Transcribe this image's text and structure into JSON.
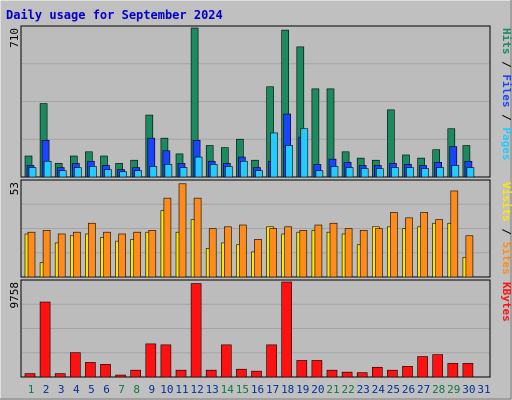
{
  "title": "Daily usage for September 2024",
  "colors": {
    "hits": "#1b8a5e",
    "files": "#1a44ff",
    "pages": "#22ccff",
    "visits": "#ffe600",
    "sites": "#ff8c1a",
    "kbytes": "#ff1111",
    "weekend_label": "#117744",
    "weekday_label": "#003399"
  },
  "chart_data": [
    {
      "type": "bar",
      "name": "hits-files-pages",
      "categories": [
        "1",
        "2",
        "3",
        "4",
        "5",
        "6",
        "7",
        "8",
        "9",
        "10",
        "11",
        "12",
        "13",
        "14",
        "15",
        "16",
        "17",
        "18",
        "19",
        "20",
        "21",
        "22",
        "23",
        "24",
        "25",
        "26",
        "27",
        "28",
        "29",
        "30",
        "31"
      ],
      "weekend_days": [
        "1",
        "7",
        "8",
        "14",
        "15",
        "21",
        "22",
        "28",
        "29"
      ],
      "max_label": "710",
      "ylim": [
        0,
        710
      ],
      "right_label": {
        "pages": "Pages",
        "files": "Files",
        "hits": "Hits",
        "sep": " / "
      },
      "series": [
        {
          "name": "Hits",
          "values": [
            100,
            350,
            65,
            100,
            120,
            100,
            65,
            80,
            295,
            185,
            110,
            710,
            150,
            140,
            180,
            80,
            430,
            700,
            620,
            420,
            420,
            120,
            90,
            80,
            320,
            105,
            90,
            130,
            230,
            150,
            0
          ]
        },
        {
          "name": "Files",
          "values": [
            55,
            175,
            45,
            65,
            75,
            55,
            35,
            45,
            185,
            125,
            65,
            175,
            75,
            65,
            95,
            45,
            75,
            300,
            190,
            60,
            85,
            70,
            55,
            55,
            65,
            60,
            55,
            70,
            145,
            75,
            0
          ]
        },
        {
          "name": "Pages",
          "values": [
            45,
            75,
            30,
            45,
            50,
            35,
            25,
            30,
            50,
            60,
            45,
            95,
            60,
            50,
            75,
            30,
            210,
            150,
            230,
            30,
            50,
            45,
            40,
            40,
            45,
            45,
            40,
            45,
            55,
            45,
            0
          ]
        }
      ]
    },
    {
      "type": "bar",
      "name": "visits-sites",
      "categories": [
        "1",
        "2",
        "3",
        "4",
        "5",
        "6",
        "7",
        "8",
        "9",
        "10",
        "11",
        "12",
        "13",
        "14",
        "15",
        "16",
        "17",
        "18",
        "19",
        "20",
        "21",
        "22",
        "23",
        "24",
        "25",
        "26",
        "27",
        "28",
        "29",
        "30",
        "31"
      ],
      "max_label": "53",
      "ylim": [
        0,
        53
      ],
      "right_label": {
        "sites": "Sites",
        "visits": "Visits",
        "sep": " / "
      },
      "series": [
        {
          "name": "Visits",
          "values": [
            24,
            8,
            19,
            23,
            24,
            22,
            20,
            21,
            25,
            37,
            25,
            32,
            16,
            19,
            18,
            14,
            28,
            24,
            25,
            26,
            25,
            24,
            18,
            28,
            28,
            27,
            28,
            30,
            30,
            11,
            0
          ]
        },
        {
          "name": "Sites",
          "values": [
            25,
            26,
            24,
            25,
            30,
            25,
            24,
            25,
            26,
            44,
            52,
            44,
            27,
            28,
            29,
            21,
            27,
            28,
            26,
            29,
            30,
            27,
            26,
            27,
            36,
            33,
            36,
            32,
            48,
            23,
            0
          ]
        }
      ]
    },
    {
      "type": "bar",
      "name": "kbytes",
      "categories": [
        "1",
        "2",
        "3",
        "4",
        "5",
        "6",
        "7",
        "8",
        "9",
        "10",
        "11",
        "12",
        "13",
        "14",
        "15",
        "16",
        "17",
        "18",
        "19",
        "20",
        "21",
        "22",
        "23",
        "24",
        "25",
        "26",
        "27",
        "28",
        "29",
        "30",
        "31"
      ],
      "max_label": "9758",
      "ylim": [
        0,
        9758
      ],
      "right_label": "KBytes",
      "series": [
        {
          "name": "KBytes",
          "values": [
            350,
            7700,
            350,
            2500,
            1500,
            1300,
            200,
            700,
            3400,
            3300,
            700,
            9600,
            700,
            3300,
            800,
            600,
            3300,
            9758,
            1700,
            1700,
            700,
            500,
            450,
            1000,
            700,
            1100,
            2100,
            2300,
            1400,
            1400,
            0
          ]
        }
      ]
    }
  ]
}
